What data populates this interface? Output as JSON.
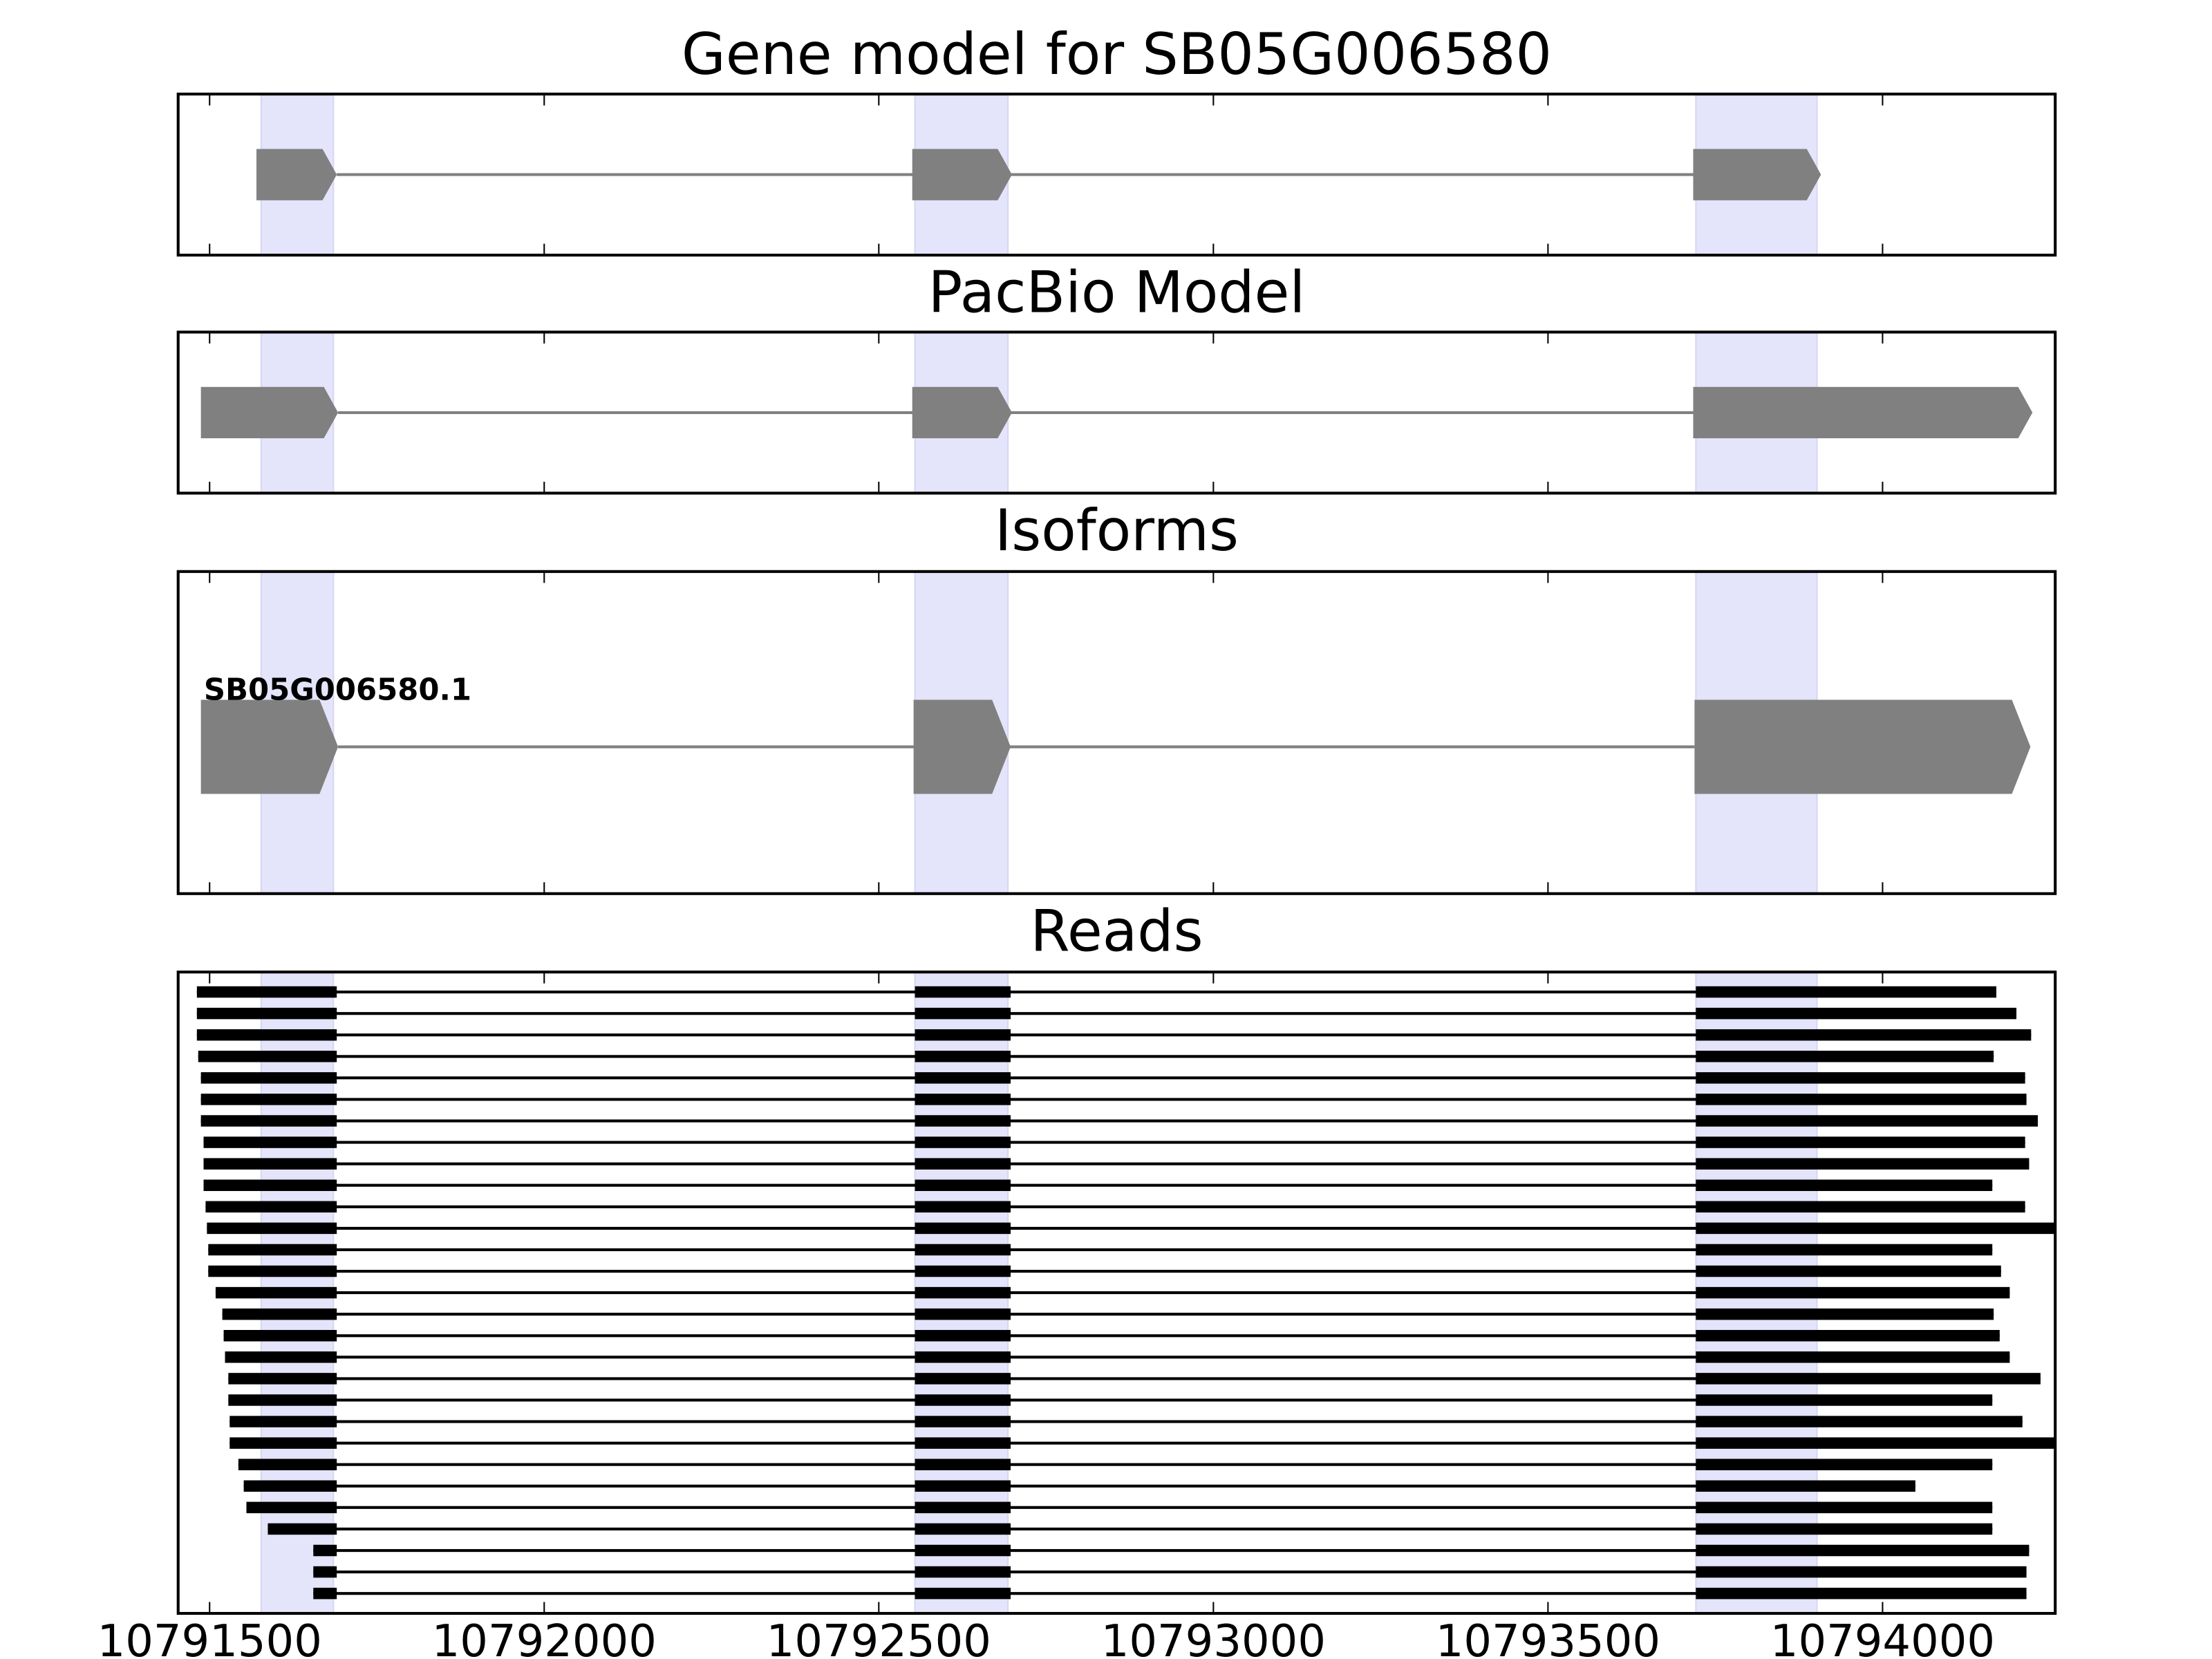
{
  "chart_data": {
    "type": "gene-tracks",
    "xlim": [
      10791453,
      10794258
    ],
    "xticks": [
      10791500,
      10792000,
      10792500,
      10793000,
      10793500,
      10794000
    ],
    "highlights": [
      [
        10791577,
        10791685
      ],
      [
        10792554,
        10792693
      ],
      [
        10793721,
        10793902
      ]
    ],
    "highlight_color": "#e4e4fb",
    "exon_color": "#808080",
    "read_color": "#000000",
    "panels": [
      {
        "title": "Gene model for SB05G006580",
        "kind": "model",
        "exons": [
          [
            10791570,
            10791690
          ],
          [
            10792550,
            10792699
          ],
          [
            10793717,
            10793908
          ]
        ]
      },
      {
        "title": "PacBio Model",
        "kind": "model",
        "exons": [
          [
            10791487,
            10791692
          ],
          [
            10792550,
            10792699
          ],
          [
            10793717,
            10794224
          ]
        ]
      },
      {
        "title": "Isoforms",
        "kind": "isoforms",
        "isoforms": [
          {
            "name": "SB05G006580.1",
            "exons": [
              [
                10791487,
                10791692
              ],
              [
                10792552,
                10792697
              ],
              [
                10793719,
                10794221
              ]
            ]
          }
        ]
      },
      {
        "title": "Reads",
        "kind": "reads",
        "reads": [
          [
            [
              10791481,
              10791690
            ],
            [
              10792554,
              10792697
            ],
            [
              10793721,
              10794170
            ]
          ],
          [
            [
              10791481,
              10791690
            ],
            [
              10792554,
              10792697
            ],
            [
              10793721,
              10794200
            ]
          ],
          [
            [
              10791481,
              10791690
            ],
            [
              10792554,
              10792697
            ],
            [
              10793721,
              10794222
            ]
          ],
          [
            [
              10791483,
              10791690
            ],
            [
              10792554,
              10792697
            ],
            [
              10793721,
              10794166
            ]
          ],
          [
            [
              10791487,
              10791690
            ],
            [
              10792554,
              10792697
            ],
            [
              10793721,
              10794213
            ]
          ],
          [
            [
              10791487,
              10791690
            ],
            [
              10792554,
              10792697
            ],
            [
              10793721,
              10794215
            ]
          ],
          [
            [
              10791487,
              10791690
            ],
            [
              10792554,
              10792697
            ],
            [
              10793721,
              10794232
            ]
          ],
          [
            [
              10791491,
              10791690
            ],
            [
              10792554,
              10792697
            ],
            [
              10793721,
              10794213
            ]
          ],
          [
            [
              10791491,
              10791690
            ],
            [
              10792554,
              10792697
            ],
            [
              10793721,
              10794219
            ]
          ],
          [
            [
              10791491,
              10791690
            ],
            [
              10792554,
              10792697
            ],
            [
              10793721,
              10794164
            ]
          ],
          [
            [
              10791494,
              10791690
            ],
            [
              10792554,
              10792697
            ],
            [
              10793721,
              10794213
            ]
          ],
          [
            [
              10791496,
              10791690
            ],
            [
              10792554,
              10792697
            ],
            [
              10793721,
              10794280
            ]
          ],
          [
            [
              10791498,
              10791690
            ],
            [
              10792554,
              10792697
            ],
            [
              10793721,
              10794164
            ]
          ],
          [
            [
              10791498,
              10791690
            ],
            [
              10792554,
              10792697
            ],
            [
              10793721,
              10794177
            ]
          ],
          [
            [
              10791509,
              10791690
            ],
            [
              10792554,
              10792697
            ],
            [
              10793721,
              10794190
            ]
          ],
          [
            [
              10791519,
              10791690
            ],
            [
              10792554,
              10792697
            ],
            [
              10793721,
              10794166
            ]
          ],
          [
            [
              10791521,
              10791690
            ],
            [
              10792554,
              10792697
            ],
            [
              10793721,
              10794175
            ]
          ],
          [
            [
              10791523,
              10791690
            ],
            [
              10792554,
              10792697
            ],
            [
              10793721,
              10794190
            ]
          ],
          [
            [
              10791528,
              10791690
            ],
            [
              10792554,
              10792697
            ],
            [
              10793721,
              10794236
            ]
          ],
          [
            [
              10791528,
              10791690
            ],
            [
              10792554,
              10792697
            ],
            [
              10793721,
              10794164
            ]
          ],
          [
            [
              10791530,
              10791690
            ],
            [
              10792554,
              10792697
            ],
            [
              10793721,
              10794209
            ]
          ],
          [
            [
              10791530,
              10791690
            ],
            [
              10792554,
              10792697
            ],
            [
              10793721,
              10794280
            ]
          ],
          [
            [
              10791543,
              10791690
            ],
            [
              10792554,
              10792697
            ],
            [
              10793721,
              10794164
            ]
          ],
          [
            [
              10791551,
              10791690
            ],
            [
              10792554,
              10792697
            ],
            [
              10793721,
              10794049
            ]
          ],
          [
            [
              10791555,
              10791690
            ],
            [
              10792554,
              10792697
            ],
            [
              10793721,
              10794164
            ]
          ],
          [
            [
              10791587,
              10791690
            ],
            [
              10792554,
              10792697
            ],
            [
              10793721,
              10794164
            ]
          ],
          [
            [
              10791655,
              10791690
            ],
            [
              10792554,
              10792697
            ],
            [
              10793721,
              10794219
            ]
          ],
          [
            [
              10791655,
              10791690
            ],
            [
              10792554,
              10792697
            ],
            [
              10793721,
              10794215
            ]
          ],
          [
            [
              10791655,
              10791690
            ],
            [
              10792554,
              10792697
            ],
            [
              10793721,
              10794215
            ]
          ]
        ]
      }
    ]
  }
}
